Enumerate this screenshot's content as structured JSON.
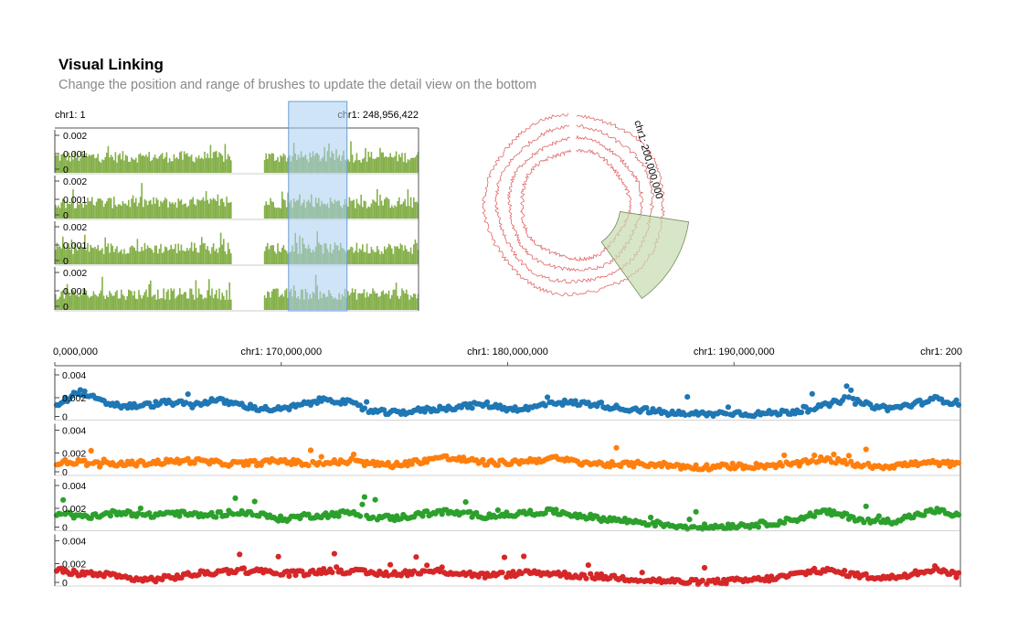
{
  "header": {
    "title": "Visual Linking",
    "subtitle": "Change the position and range of brushes to update the detail view on the bottom"
  },
  "colors": {
    "bar_fill": "#85b04a",
    "brush_fill": "#a9cdf2",
    "brush_stroke": "#6a9fd4",
    "circular_line": "#e06666",
    "circular_brush_fill": "#c7dcb0",
    "circular_brush_stroke": "#6f8a55",
    "series": [
      "#1f77b4",
      "#ff7f0e",
      "#2ca02c",
      "#d62728"
    ]
  },
  "chart_data": [
    {
      "name": "overview-bar-tracks",
      "type": "bar",
      "x_axis": {
        "start_label": "chr1: 1",
        "end_label": "chr1: 248,956,422",
        "range": [
          1,
          248956422
        ]
      },
      "tracks": 4,
      "y_ticks": [
        "0.002",
        "0.001",
        "0"
      ],
      "ylim": [
        0,
        0.0025
      ],
      "gap_range": [
        121000000,
        143000000
      ],
      "brush": {
        "start": 160000000,
        "end": 200000000
      }
    },
    {
      "name": "overview-circular-tracks",
      "type": "line",
      "label": "chr1: 200,000,000",
      "rings": 4,
      "brush": {
        "start": 160000000,
        "end": 200000000
      }
    },
    {
      "name": "detail-scatter-tracks",
      "type": "scatter",
      "x_ticks": [
        "0,000,000",
        "chr1: 170,000,000",
        "chr1: 180,000,000",
        "chr1: 190,000,000",
        "chr1: 200"
      ],
      "x_tick_values": [
        160000000,
        170000000,
        180000000,
        190000000,
        200000000
      ],
      "xlim": [
        160000000,
        200000000
      ],
      "y_ticks": [
        "0.004",
        "0.002",
        "0"
      ],
      "ylim": [
        0,
        0.0046
      ],
      "series": [
        {
          "values_summary": [
            0.0012,
            0.0025,
            0.0015,
            0.0011,
            0.0012,
            0.0015,
            0.0012,
            0.0017,
            0.0013,
            0.0009,
            0.0008,
            0.0013,
            0.0018,
            0.0014,
            0.0006,
            0.0005,
            0.0007,
            0.0009,
            0.0011,
            0.0013,
            0.0009,
            0.0009,
            0.0015,
            0.0014,
            0.0013,
            0.0009,
            0.0008,
            0.0005,
            0.0004,
            0.0004,
            0.0005,
            0.0004,
            0.0005,
            0.0007,
            0.0011,
            0.0018,
            0.0012,
            0.0009,
            0.0013,
            0.0018,
            0.0014
          ]
        },
        {
          "values_summary": [
            0.001,
            0.0011,
            0.0008,
            0.0009,
            0.001,
            0.0011,
            0.0012,
            0.001,
            0.0009,
            0.001,
            0.0012,
            0.0009,
            0.001,
            0.0011,
            0.0009,
            0.0008,
            0.0011,
            0.0015,
            0.0013,
            0.001,
            0.001,
            0.0012,
            0.0014,
            0.0011,
            0.0009,
            0.0008,
            0.0009,
            0.0008,
            0.0006,
            0.0006,
            0.0007,
            0.0007,
            0.0008,
            0.0009,
            0.0014,
            0.001,
            0.0007,
            0.0007,
            0.0009,
            0.001,
            0.0008
          ]
        },
        {
          "values_summary": [
            0.0015,
            0.0011,
            0.0013,
            0.0016,
            0.0012,
            0.0015,
            0.0013,
            0.0013,
            0.0016,
            0.0013,
            0.0009,
            0.0012,
            0.0013,
            0.0015,
            0.0011,
            0.001,
            0.0013,
            0.0016,
            0.0014,
            0.0012,
            0.0013,
            0.0015,
            0.0016,
            0.0013,
            0.001,
            0.0008,
            0.0006,
            0.0004,
            0.0002,
            0.0002,
            0.0003,
            0.0004,
            0.0006,
            0.001,
            0.0016,
            0.0012,
            0.0007,
            0.0007,
            0.0012,
            0.0017,
            0.0012
          ]
        },
        {
          "values_summary": [
            0.0013,
            0.001,
            0.0009,
            0.0006,
            0.0004,
            0.0006,
            0.0009,
            0.0011,
            0.0013,
            0.0012,
            0.001,
            0.001,
            0.0013,
            0.0012,
            0.001,
            0.001,
            0.0011,
            0.0012,
            0.001,
            0.0008,
            0.0009,
            0.0011,
            0.001,
            0.0008,
            0.0007,
            0.0006,
            0.0004,
            0.0003,
            0.0002,
            0.0002,
            0.0003,
            0.0004,
            0.0006,
            0.001,
            0.0013,
            0.001,
            0.0007,
            0.0006,
            0.001,
            0.0015,
            0.0008
          ]
        }
      ]
    }
  ]
}
